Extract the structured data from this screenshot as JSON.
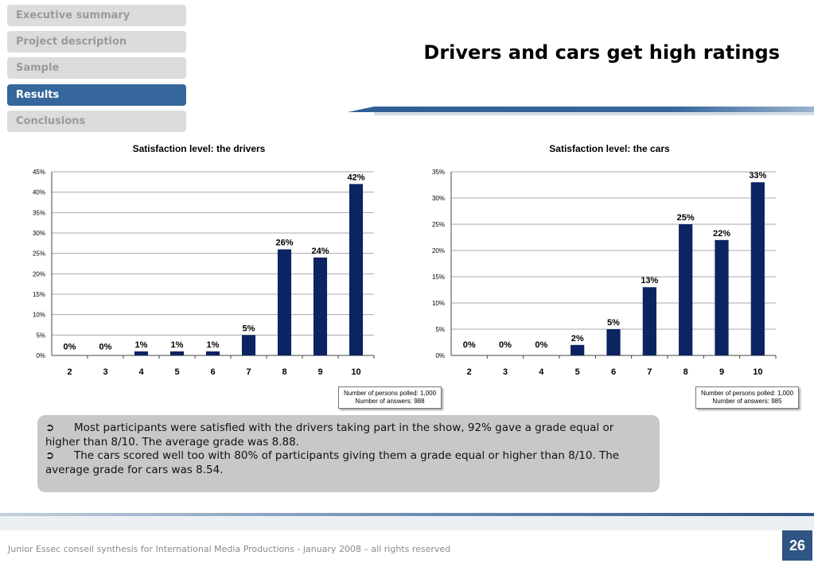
{
  "nav": {
    "items": [
      {
        "label": "Executive summary",
        "active": false
      },
      {
        "label": "Project description",
        "active": false
      },
      {
        "label": "Sample",
        "active": false
      },
      {
        "label": "Results",
        "active": true
      },
      {
        "label": "Conclusions",
        "active": false
      }
    ]
  },
  "slide": {
    "title": "Drivers and cars get high ratings"
  },
  "colors": {
    "bar": "#0c2461",
    "nav_active": "#35679c",
    "nav_inactive": "#dcdcdc",
    "summary_bg": "#c8c8c8",
    "page_badge": "#2f5584"
  },
  "chart_data": [
    {
      "type": "bar",
      "title": "Satisfaction level: the drivers",
      "categories": [
        "2",
        "3",
        "4",
        "5",
        "6",
        "7",
        "8",
        "9",
        "10"
      ],
      "values": [
        0,
        0,
        1,
        1,
        1,
        5,
        26,
        24,
        42
      ],
      "data_labels": [
        "0%",
        "0%",
        "1%",
        "1%",
        "1%",
        "5%",
        "26%",
        "24%",
        "42%"
      ],
      "ylim": [
        0,
        45
      ],
      "yticks": [
        "0%",
        "5%",
        "10%",
        "15%",
        "20%",
        "25%",
        "30%",
        "35%",
        "40%",
        "45%"
      ],
      "grid": true,
      "xlabel": "",
      "ylabel": ""
    },
    {
      "type": "bar",
      "title": "Satisfaction level: the cars",
      "categories": [
        "2",
        "3",
        "4",
        "5",
        "6",
        "7",
        "8",
        "9",
        "10"
      ],
      "values": [
        0,
        0,
        0,
        2,
        5,
        13,
        25,
        22,
        33
      ],
      "data_labels": [
        "0%",
        "0%",
        "0%",
        "2%",
        "5%",
        "13%",
        "25%",
        "22%",
        "33%"
      ],
      "ylim": [
        0,
        35
      ],
      "yticks": [
        "0%",
        "5%",
        "10%",
        "15%",
        "20%",
        "25%",
        "30%",
        "35%"
      ],
      "grid": true,
      "xlabel": "",
      "ylabel": ""
    }
  ],
  "polls": {
    "drivers": {
      "line1": "Number of persons polled: 1,000",
      "line2": "Number of answers: 988"
    },
    "cars": {
      "line1": "Number of persons polled: 1,000",
      "line2": "Number of answers: 985"
    }
  },
  "summary": {
    "bullet_icon": "arrow-right-icon",
    "bullet1": "Most participants were satisfied with the drivers taking part in the show, 92% gave a grade equal or higher than 8/10. The average grade was 8.88.",
    "bullet2": "The cars scored well too with 80% of participants giving them a grade equal or higher than 8/10. The average grade for cars was 8.54."
  },
  "footer": {
    "text": "Junior Essec conseil synthesis for International Media Productions - january 2008 – all rights reserved",
    "page_number": "26"
  }
}
